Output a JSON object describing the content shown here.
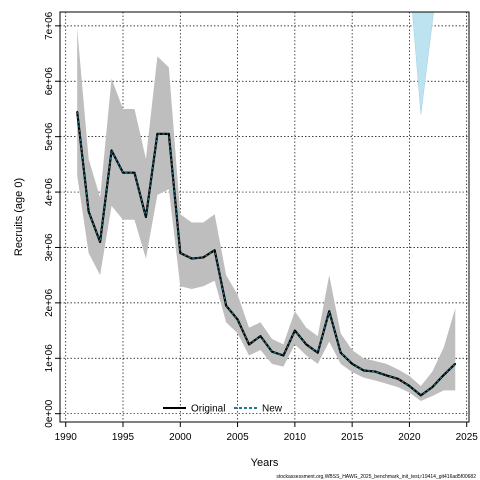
{
  "chart_data": {
    "type": "line",
    "xlabel": "Years",
    "ylabel": "Recruits (age 0)",
    "xlim": [
      1989.5,
      2025.2
    ],
    "ylim": [
      -150000,
      7250000
    ],
    "x_ticks": [
      1990,
      1995,
      2000,
      2005,
      2010,
      2015,
      2020,
      2025
    ],
    "x_tick_labels": [
      "1990",
      "1995",
      "2000",
      "2005",
      "2010",
      "2015",
      "2020",
      "2025"
    ],
    "y_ticks": [
      0,
      1000000,
      2000000,
      3000000,
      4000000,
      5000000,
      6000000,
      7000000
    ],
    "y_tick_labels": [
      "0e+00",
      "1e+06",
      "2e+06",
      "3e+06",
      "4e+06",
      "5e+06",
      "6e+06",
      "7e+06"
    ],
    "grid": true,
    "legend_position": "bottom-center",
    "legend": [
      "Original",
      "New"
    ],
    "colors": {
      "original_band": "#bebebe",
      "original_line": "#000000",
      "new_band": "#bde3f0",
      "new_line": "#1f7a8c"
    },
    "series": [
      {
        "name": "Original",
        "x": [
          1991,
          1992,
          1993,
          1994,
          1995,
          1996,
          1997,
          1998,
          1999,
          2000,
          2001,
          2002,
          2003,
          2004,
          2005,
          2006,
          2007,
          2008,
          2009,
          2010,
          2011,
          2012,
          2013,
          2014,
          2015,
          2016,
          2017,
          2018,
          2019,
          2020,
          2021,
          2022,
          2023,
          2024
        ],
        "y": [
          5450000,
          3650000,
          3100000,
          4750000,
          4350000,
          4350000,
          3550000,
          5050000,
          5050000,
          2900000,
          2800000,
          2820000,
          2950000,
          1950000,
          1700000,
          1250000,
          1400000,
          1120000,
          1050000,
          1500000,
          1250000,
          1100000,
          1850000,
          1100000,
          900000,
          780000,
          760000,
          690000,
          630000,
          500000,
          330000,
          480000,
          700000,
          900000
        ],
        "lower": [
          4300000,
          2900000,
          2500000,
          3750000,
          3500000,
          3500000,
          2800000,
          3950000,
          4050000,
          2300000,
          2250000,
          2300000,
          2400000,
          1650000,
          1450000,
          1050000,
          1150000,
          900000,
          850000,
          1250000,
          1050000,
          900000,
          1300000,
          900000,
          750000,
          650000,
          600000,
          540000,
          480000,
          380000,
          230000,
          320000,
          420000,
          420000
        ],
        "upper": [
          6950000,
          4600000,
          3900000,
          6050000,
          5500000,
          5500000,
          4600000,
          6450000,
          6250000,
          3600000,
          3450000,
          3450000,
          3600000,
          2500000,
          2150000,
          1550000,
          1650000,
          1350000,
          1250000,
          1850000,
          1550000,
          1400000,
          2500000,
          1450000,
          1150000,
          1000000,
          950000,
          900000,
          800000,
          680000,
          500000,
          760000,
          1200000,
          1900000
        ]
      },
      {
        "name": "New",
        "x": [
          2020.2,
          2021,
          2022.2
        ],
        "y": [
          7400000,
          7400000,
          7400000
        ],
        "lower": [
          7400000,
          5400000,
          7400000
        ],
        "upper": [
          7400000,
          7400000,
          7400000
        ]
      }
    ]
  },
  "footer_text": "stockassessment.org,WBSS_HAWG_2025_benchmark_init_test,r19414_git416ad5f00682"
}
